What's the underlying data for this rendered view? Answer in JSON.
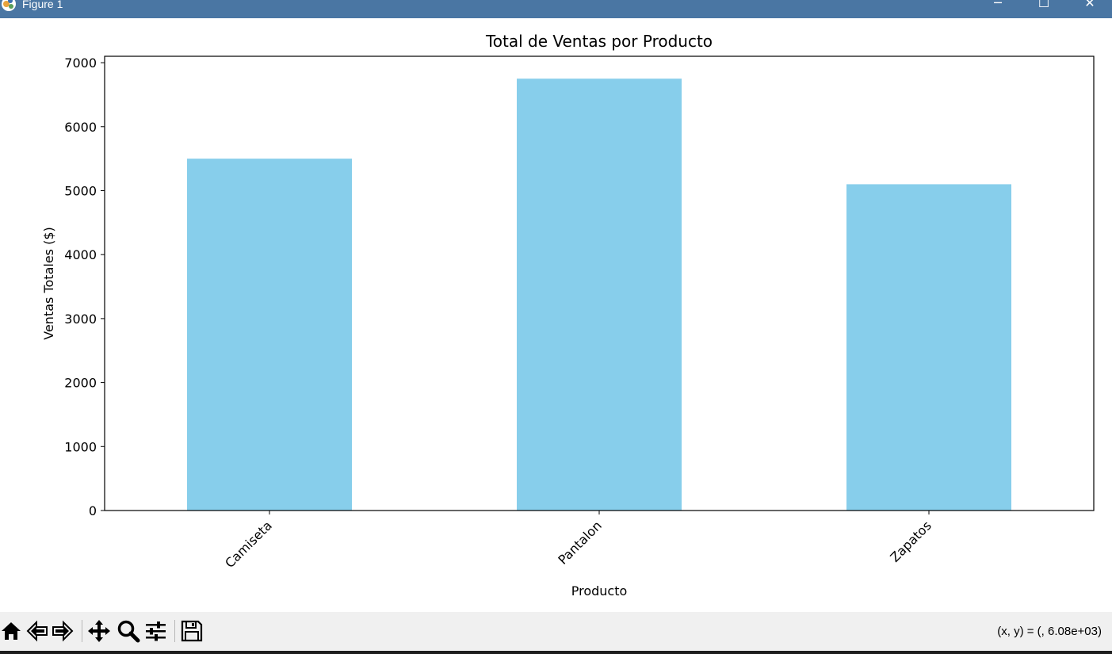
{
  "window": {
    "title": "Figure 1",
    "minimize_glyph": "─",
    "maximize_glyph": "☐",
    "close_glyph": "✕"
  },
  "chart_data": {
    "type": "bar",
    "title": "Total de Ventas por Producto",
    "xlabel": "Producto",
    "ylabel": "Ventas Totales ($)",
    "categories": [
      "Camiseta",
      "Pantalon",
      "Zapatos"
    ],
    "values": [
      5500,
      6750,
      5100
    ],
    "ylim": [
      0,
      7100
    ],
    "yticks": [
      0,
      1000,
      2000,
      3000,
      4000,
      5000,
      6000,
      7000
    ],
    "bar_color": "#87ceeb",
    "xtick_rotation": -45,
    "grid": false,
    "legend": "none"
  },
  "toolbar": {
    "buttons": [
      {
        "name": "home-button",
        "icon": "home-icon"
      },
      {
        "name": "back-button",
        "icon": "back-arrow-icon"
      },
      {
        "name": "forward-button",
        "icon": "forward-arrow-icon"
      },
      {
        "name": "pan-button",
        "icon": "pan-icon"
      },
      {
        "name": "zoom-button",
        "icon": "zoom-icon"
      },
      {
        "name": "configure-subplots-button",
        "icon": "sliders-icon"
      },
      {
        "name": "save-button",
        "icon": "save-icon"
      }
    ],
    "coord_readout": "(x, y) = (, 6.08e+03)"
  }
}
